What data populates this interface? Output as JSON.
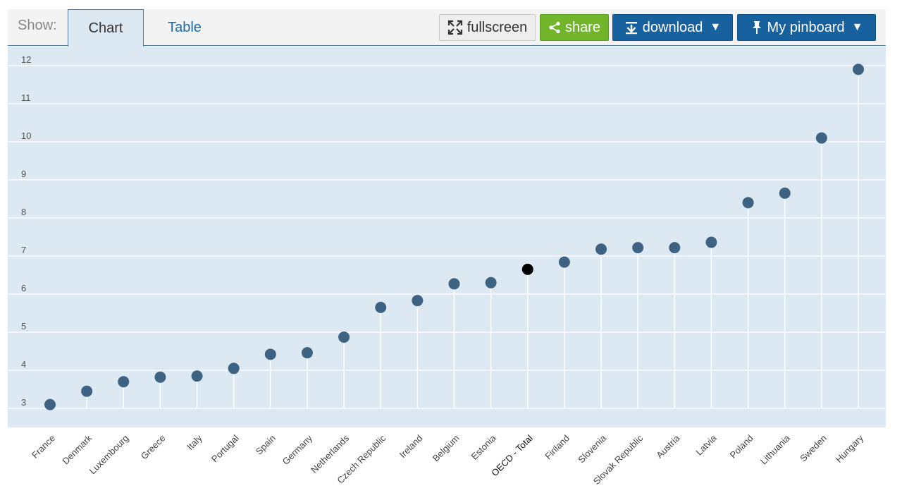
{
  "toolbar": {
    "show_label": "Show:",
    "tabs": [
      {
        "label": "Chart",
        "active": true
      },
      {
        "label": "Table",
        "active": false
      }
    ],
    "buttons": {
      "fullscreen": "fullscreen",
      "share": "share",
      "download": "download",
      "pinboard": "My pinboard",
      "caret": "▼"
    }
  },
  "colors": {
    "plot_background": "#dde9f2",
    "point": "#3d6282",
    "highlight_point": "#000000",
    "stem": "#ffffff",
    "grid": "#ffffff",
    "share_button": "#72b52a",
    "download_button": "#17629e",
    "pinboard_button": "#17629e"
  },
  "icons": {
    "fullscreen": "expand-arrows-icon",
    "share": "share-icon",
    "download": "download-arrow-icon",
    "pinboard": "pin-icon"
  },
  "chart_data": {
    "type": "scatter",
    "style": "lollipop",
    "title": "",
    "xlabel": "",
    "ylabel": "",
    "ylim": [
      2.5,
      12.5
    ],
    "yticks": [
      3,
      4,
      5,
      6,
      7,
      8,
      9,
      10,
      11,
      12
    ],
    "grid": true,
    "categories": [
      "France",
      "Denmark",
      "Luxembourg",
      "Greece",
      "Italy",
      "Portugal",
      "Spain",
      "Germany",
      "Netherlands",
      "Czech Republic",
      "Ireland",
      "Belgium",
      "Estonia",
      "OECD - Total",
      "Finland",
      "Slovenia",
      "Slovak Republic",
      "Austria",
      "Latvia",
      "Poland",
      "Lithuania",
      "Sweden",
      "Hungary"
    ],
    "values": [
      3.1,
      3.45,
      3.7,
      3.82,
      3.85,
      4.05,
      4.42,
      4.46,
      4.87,
      5.65,
      5.83,
      6.27,
      6.3,
      6.65,
      6.84,
      7.18,
      7.22,
      7.22,
      7.36,
      8.4,
      8.65,
      10.1,
      11.9
    ],
    "highlight": "OECD - Total"
  }
}
